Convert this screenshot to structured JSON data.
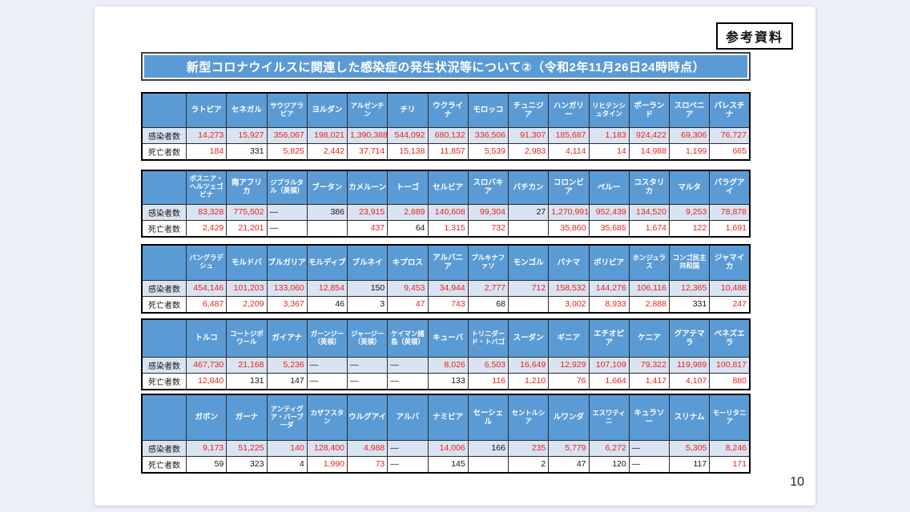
{
  "page": {
    "ref_label": "参考資料",
    "title": "新型コロナウイルスに関連した感染症の発生状況等について②（令和2年11月26日24時時点）",
    "page_number": "10",
    "row_labels": {
      "infected": "感染者数",
      "deaths": "死亡者数"
    }
  },
  "colors": {
    "header_blue": "#5b9bd5",
    "infected_row_bg": "#dae3f1",
    "value_red": "#e5231b",
    "value_black": "#141414"
  },
  "tables": [
    {
      "countries": [
        "ラトビア",
        "セネガル",
        "サウジアラビア",
        "ヨルダン",
        "アルゼンチン",
        "チリ",
        "ウクライナ",
        "モロッコ",
        "チュニジア",
        "ハンガリー",
        "リヒテンシュタイン",
        "ポーランド",
        "スロベニア",
        "パレスチナ"
      ],
      "infected": [
        "14,273",
        "15,927",
        "356,067",
        "198,021",
        "1,390,388",
        "544,092",
        "680,132",
        "336,506",
        "91,307",
        "185,687",
        "1,183",
        "924,422",
        "69,306",
        "76,727"
      ],
      "infected_colors": [
        "r",
        "r",
        "r",
        "r",
        "r",
        "r",
        "r",
        "r",
        "r",
        "r",
        "r",
        "r",
        "r",
        "r"
      ],
      "deaths": [
        "184",
        "331",
        "5,825",
        "2,442",
        "37,714",
        "15,138",
        "11,857",
        "5,539",
        "2,983",
        "4,114",
        "14",
        "14,988",
        "1,199",
        "665"
      ],
      "deaths_colors": [
        "r",
        "b",
        "r",
        "r",
        "r",
        "r",
        "r",
        "r",
        "r",
        "r",
        "r",
        "r",
        "r",
        "r"
      ]
    },
    {
      "countries": [
        "ボスニア・ヘルツェゴビナ",
        "南アフリカ",
        "ジブラルタル（英領）",
        "ブータン",
        "カメルーン",
        "トーゴ",
        "セルビア",
        "スロバキア",
        "バチカン",
        "コロンビア",
        "ペルー",
        "コスタリカ",
        "マルタ",
        "パラグアイ"
      ],
      "infected": [
        "83,328",
        "775,502",
        "―",
        "386",
        "23,915",
        "2,889",
        "140,608",
        "99,304",
        "27",
        "1,270,991",
        "952,439",
        "134,520",
        "9,253",
        "78,878"
      ],
      "infected_colors": [
        "r",
        "r",
        "b",
        "b",
        "r",
        "r",
        "r",
        "r",
        "b",
        "r",
        "r",
        "r",
        "r",
        "r"
      ],
      "deaths": [
        "2,429",
        "21,201",
        "―",
        "",
        "437",
        "64",
        "1,315",
        "732",
        "",
        "35,860",
        "35,685",
        "1,674",
        "122",
        "1,691"
      ],
      "deaths_colors": [
        "r",
        "r",
        "b",
        "b",
        "r",
        "b",
        "r",
        "r",
        "b",
        "r",
        "r",
        "r",
        "r",
        "r"
      ]
    },
    {
      "countries": [
        "バングラデシュ",
        "モルドバ",
        "ブルガリア",
        "モルディブ",
        "ブルネイ",
        "キプロス",
        "アルバニア",
        "ブルキナファソ",
        "モンゴル",
        "パナマ",
        "ボリビア",
        "ホンジュラス",
        "コンゴ民主共和国",
        "ジャマイカ"
      ],
      "infected": [
        "454,146",
        "101,203",
        "133,060",
        "12,854",
        "150",
        "9,453",
        "34,944",
        "2,777",
        "712",
        "158,532",
        "144,276",
        "106,116",
        "12,365",
        "10,488"
      ],
      "infected_colors": [
        "r",
        "r",
        "r",
        "r",
        "b",
        "r",
        "r",
        "r",
        "r",
        "r",
        "r",
        "r",
        "r",
        "r"
      ],
      "deaths": [
        "6,487",
        "2,209",
        "3,367",
        "46",
        "3",
        "47",
        "743",
        "68",
        "",
        "3,002",
        "8,933",
        "2,888",
        "331",
        "247"
      ],
      "deaths_colors": [
        "r",
        "r",
        "r",
        "b",
        "b",
        "r",
        "r",
        "b",
        "b",
        "r",
        "r",
        "r",
        "b",
        "r"
      ]
    },
    {
      "countries": [
        "トルコ",
        "コートジボワール",
        "ガイアナ",
        "ガーンジー（英領）",
        "ジャージー（英領）",
        "ケイマン諸島（英領）",
        "キューバ",
        "トリニダード・トバゴ",
        "スーダン",
        "ギニア",
        "エチオピア",
        "ケニア",
        "グアテマラ",
        "ベネズエラ"
      ],
      "infected": [
        "467,730",
        "21,168",
        "5,236",
        "―",
        "―",
        "―",
        "8,026",
        "6,503",
        "16,649",
        "12,929",
        "107,109",
        "79,322",
        "119,989",
        "100,817"
      ],
      "infected_colors": [
        "r",
        "r",
        "r",
        "b",
        "b",
        "b",
        "r",
        "r",
        "r",
        "r",
        "r",
        "r",
        "r",
        "r"
      ],
      "deaths": [
        "12,840",
        "131",
        "147",
        "―",
        "―",
        "―",
        "133",
        "116",
        "1,210",
        "76",
        "1,664",
        "1,417",
        "4,107",
        "880"
      ],
      "deaths_colors": [
        "r",
        "b",
        "b",
        "b",
        "b",
        "b",
        "b",
        "r",
        "r",
        "r",
        "r",
        "r",
        "r",
        "r"
      ]
    },
    {
      "countries": [
        "ガボン",
        "ガーナ",
        "アンティグア・バーブーダ",
        "カザフスタン",
        "ウルグアイ",
        "アルバ",
        "ナミビア",
        "セーシェル",
        "セントルシア",
        "ルワンダ",
        "エスワティニ",
        "キュラソー",
        "スリナム",
        "モーリタニア"
      ],
      "infected": [
        "9,173",
        "51,225",
        "140",
        "128,400",
        "4,988",
        "―",
        "14,006",
        "166",
        "235",
        "5,779",
        "6,272",
        "―",
        "5,305",
        "8,246"
      ],
      "infected_colors": [
        "r",
        "r",
        "r",
        "r",
        "r",
        "b",
        "r",
        "b",
        "r",
        "r",
        "r",
        "b",
        "r",
        "r"
      ],
      "deaths": [
        "59",
        "323",
        "4",
        "1,990",
        "73",
        "―",
        "145",
        "",
        "2",
        "47",
        "120",
        "―",
        "117",
        "171"
      ],
      "deaths_colors": [
        "b",
        "b",
        "b",
        "r",
        "r",
        "b",
        "b",
        "b",
        "b",
        "b",
        "b",
        "b",
        "b",
        "r"
      ]
    }
  ]
}
